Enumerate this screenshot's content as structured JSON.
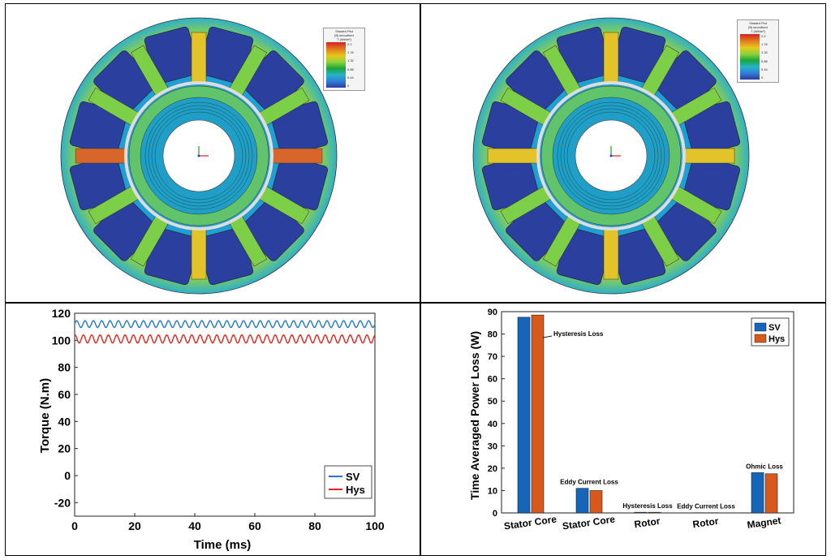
{
  "fea_plots": [
    {
      "legend": {
        "title": "Shaded Plot",
        "subtitle": "|B| smoothed",
        "unit": "T (Wb/m²)",
        "ticks": [
          "2.2",
          "1.76",
          "1.32",
          "0.88",
          "0.44",
          "0"
        ]
      }
    },
    {
      "legend": {
        "title": "Shaded Plot",
        "subtitle": "|B| smoothed",
        "unit": "T (Wb/m²)",
        "ticks": [
          "2.2",
          "1.76",
          "1.32",
          "0.88",
          "0.44",
          "0"
        ]
      }
    }
  ],
  "colors": {
    "sv": "#1f78c8",
    "hys": "#e8221a",
    "bar_sv": "#1565b8",
    "bar_hys": "#d9581b"
  },
  "chart_data": [
    {
      "type": "line",
      "xlabel": "Time (ms)",
      "ylabel": "Torque (N.m)",
      "xlim": [
        0,
        100
      ],
      "ylim": [
        -30,
        120
      ],
      "xticks": [
        "0",
        "20",
        "40",
        "60",
        "80",
        "100"
      ],
      "yticks": [
        "120",
        "100",
        "80",
        "60",
        "40",
        "20",
        "0",
        "-20"
      ],
      "legend_position": "bottom-right",
      "series": [
        {
          "name": "SV",
          "mean": 112,
          "ripple": 2.5,
          "cycles": 36
        },
        {
          "name": "Hys",
          "mean": 101,
          "ripple": 3.0,
          "cycles": 36
        }
      ]
    },
    {
      "type": "bar",
      "ylabel": "Time Averaged Power Loss (W)",
      "ylim": [
        0,
        90
      ],
      "yticks": [
        "90",
        "80",
        "70",
        "60",
        "50",
        "40",
        "30",
        "20",
        "10",
        "0"
      ],
      "categories": [
        "Stator Core",
        "Stator Core",
        "Rotor",
        "Rotor",
        "Magnet"
      ],
      "annotations": [
        "Hysteresis Loss",
        "Eddy Current Loss",
        "Hysteresis Loss",
        "Eddy Current Loss",
        "Ohmic Loss"
      ],
      "legend_position": "top-right",
      "series": [
        {
          "name": "SV",
          "values": [
            87.5,
            11,
            0.3,
            0.1,
            18
          ]
        },
        {
          "name": "Hys",
          "values": [
            88.5,
            10,
            0.3,
            0.1,
            17.5
          ]
        }
      ]
    }
  ]
}
